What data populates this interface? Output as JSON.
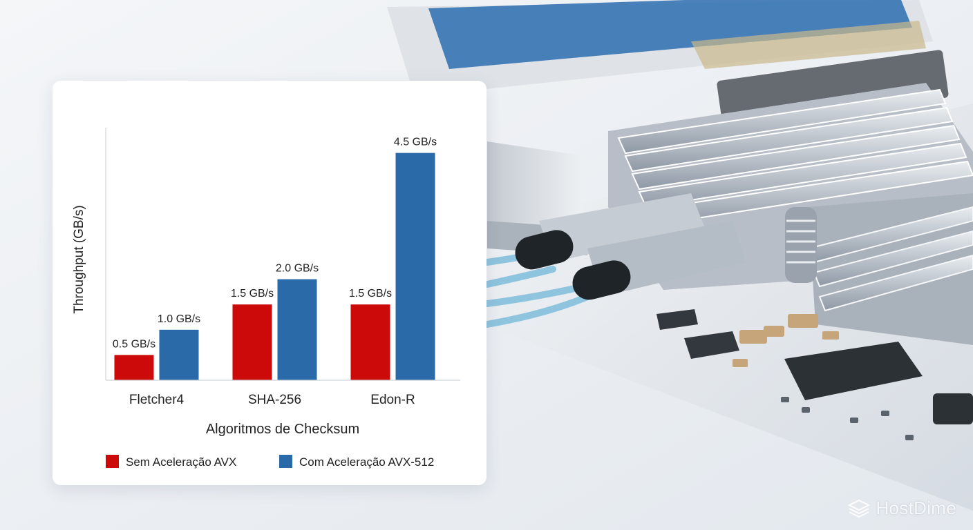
{
  "chart_data": {
    "type": "bar",
    "title": "",
    "xlabel": "Algoritmos de Checksum",
    "ylabel": "Throughput (GB/s)",
    "ylim": [
      0,
      5
    ],
    "categories": [
      "Fletcher4",
      "SHA-256",
      "Edon-R"
    ],
    "series": [
      {
        "name": "Sem Aceleração AVX",
        "color": "#cc0a0a",
        "values": [
          0.5,
          1.5,
          1.5
        ],
        "labels": [
          "0.5 GB/s",
          "1.5 GB/s",
          "1.5 GB/s"
        ]
      },
      {
        "name": "Com Aceleração AVX-512",
        "color": "#2a6aa8",
        "values": [
          1.0,
          2.0,
          4.5
        ],
        "labels": [
          "1.0 GB/s",
          "2.0 GB/s",
          "4.5 GB/s"
        ]
      }
    ],
    "grid": false,
    "legend_position": "bottom"
  },
  "watermark": {
    "text": "HostDime"
  }
}
